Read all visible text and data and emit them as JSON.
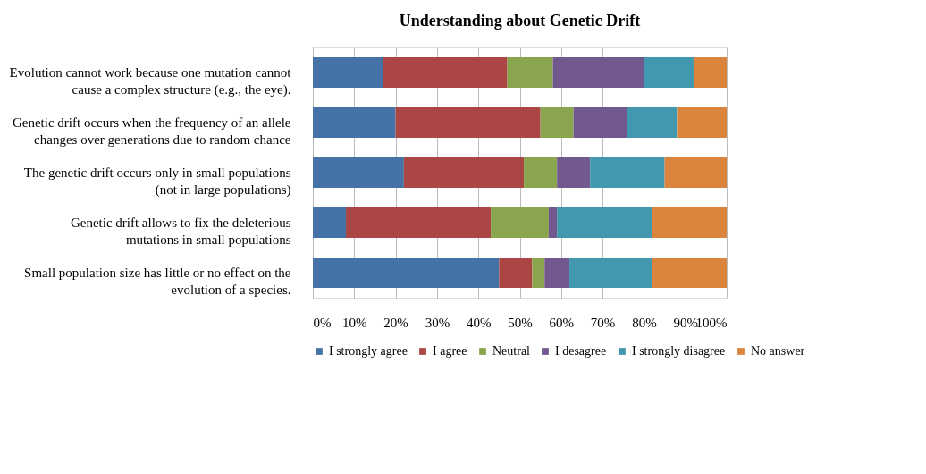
{
  "chart_data": {
    "type": "bar",
    "orientation": "horizontal",
    "stacked": true,
    "title": "Understanding  about Genetic Drift",
    "categories": [
      "Evolution cannot work because one mutation cannot cause a complex structure (e.g., the eye).",
      "Genetic drift occurs when the frequency of an allele changes over generations due to random chance",
      "The genetic drift  occurs only in small populations (not in large populations)",
      "Genetic drift allows to fix the deleterious mutations in small populations",
      "Small population size has little or no effect on the evolution of a species."
    ],
    "series": [
      {
        "name": "I strongly agree",
        "color": "#4572a7",
        "values": [
          17,
          20,
          22,
          8,
          45
        ]
      },
      {
        "name": "I agree",
        "color": "#aa4643",
        "values": [
          30,
          35,
          29,
          35,
          8
        ]
      },
      {
        "name": "Neutral",
        "color": "#89a54e",
        "values": [
          11,
          8,
          8,
          14,
          3
        ]
      },
      {
        "name": "I desagree",
        "color": "#71588f",
        "values": [
          22,
          13,
          8,
          2,
          6
        ]
      },
      {
        "name": "I strongly disagree",
        "color": "#4198af",
        "values": [
          12,
          12,
          18,
          23,
          20
        ]
      },
      {
        "name": "No answer",
        "color": "#db843d",
        "values": [
          8,
          12,
          15,
          18,
          18
        ]
      }
    ],
    "xlim": [
      0,
      100
    ],
    "xticks": [
      {
        "value": 0,
        "label": "0%"
      },
      {
        "value": 10,
        "label": "10%"
      },
      {
        "value": 20,
        "label": "20%"
      },
      {
        "value": 30,
        "label": "30%"
      },
      {
        "value": 40,
        "label": "40%"
      },
      {
        "value": 50,
        "label": "50%"
      },
      {
        "value": 60,
        "label": "60%"
      },
      {
        "value": 70,
        "label": "70%"
      },
      {
        "value": 80,
        "label": "80%"
      },
      {
        "value": 90,
        "label": "90%"
      },
      {
        "value": 100,
        "label": "100%"
      }
    ],
    "grid": "x",
    "legend": "bottom"
  }
}
